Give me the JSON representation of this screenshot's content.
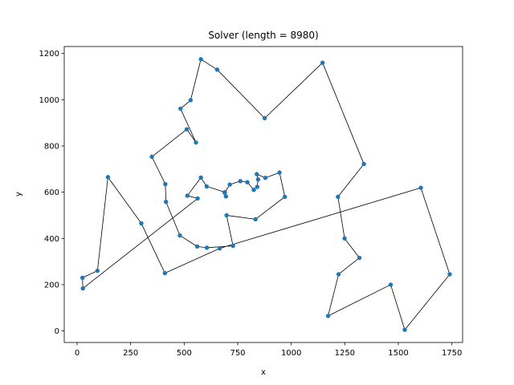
{
  "chart_data": {
    "type": "line",
    "title": "Solver (length = 8980)",
    "xlabel": "x",
    "ylabel": "y",
    "xlim": [
      -60,
      1800
    ],
    "ylim": [
      -50,
      1230
    ],
    "xticks": [
      0,
      250,
      500,
      750,
      1000,
      1250,
      1500,
      1750
    ],
    "yticks": [
      0,
      200,
      400,
      600,
      800,
      1000,
      1200
    ],
    "grid": false,
    "series": [
      {
        "closed": true,
        "color": "#000000",
        "marker_color": "#1f77b4",
        "points": [
          [
            563,
            573
          ],
          [
            515,
            585
          ],
          [
            578,
            663
          ],
          [
            605,
            625
          ],
          [
            690,
            600
          ],
          [
            695,
            582
          ],
          [
            689,
            598
          ],
          [
            713,
            633
          ],
          [
            762,
            648
          ],
          [
            795,
            643
          ],
          [
            825,
            610
          ],
          [
            841,
            623
          ],
          [
            845,
            655
          ],
          [
            839,
            678
          ],
          [
            879,
            662
          ],
          [
            945,
            685
          ],
          [
            970,
            580
          ],
          [
            833,
            483
          ],
          [
            698,
            500
          ],
          [
            728,
            368
          ],
          [
            606,
            360
          ],
          [
            561,
            365
          ],
          [
            480,
            413
          ],
          [
            415,
            558
          ],
          [
            412,
            635
          ],
          [
            349,
            753
          ],
          [
            512,
            872
          ],
          [
            555,
            815
          ],
          [
            483,
            961
          ],
          [
            530,
            998
          ],
          [
            578,
            1175
          ],
          [
            654,
            1130
          ],
          [
            876,
            920
          ],
          [
            1146,
            1160
          ],
          [
            1339,
            722
          ],
          [
            1218,
            580
          ],
          [
            1249,
            400
          ],
          [
            1318,
            316
          ],
          [
            1221,
            245
          ],
          [
            1172,
            65
          ],
          [
            1464,
            200
          ],
          [
            1530,
            5
          ],
          [
            1740,
            245
          ],
          [
            1605,
            619
          ],
          [
            666,
            357
          ],
          [
            410,
            250
          ],
          [
            300,
            465
          ],
          [
            144,
            665
          ],
          [
            95,
            260
          ],
          [
            25,
            230
          ],
          [
            27,
            184
          ]
        ]
      }
    ]
  }
}
